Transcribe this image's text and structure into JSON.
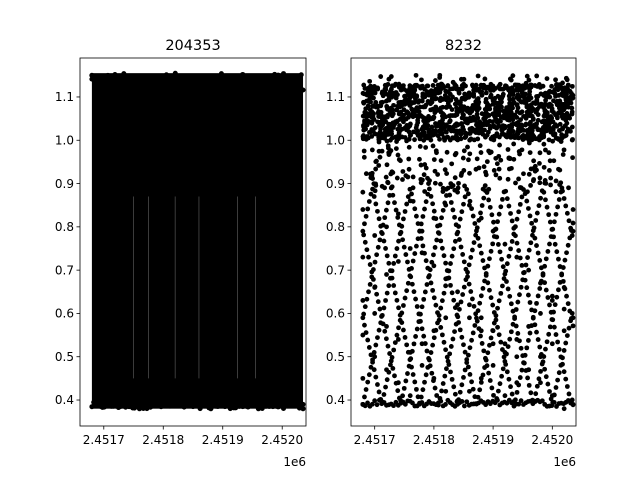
{
  "chart_data": [
    {
      "type": "scatter",
      "title": "204353",
      "xlabel": "",
      "ylabel": "",
      "x_offset_label": "1e6",
      "xlim": [
        2.45166,
        2.45204
      ],
      "ylim": [
        0.34,
        1.19
      ],
      "xticks": [
        2.4517,
        2.4518,
        2.4519,
        2.452
      ],
      "xtick_labels": [
        "2.4517",
        "2.4518",
        "2.4519",
        "2.4520"
      ],
      "yticks": [
        0.4,
        0.5,
        0.6,
        0.7,
        0.8,
        0.9,
        1.0,
        1.1
      ],
      "ytick_labels": [
        "0.4",
        "0.5",
        "0.6",
        "0.7",
        "0.8",
        "0.9",
        "1.0",
        "1.1"
      ],
      "grid": false,
      "marker_color": "#000000",
      "x_range": [
        2.45168,
        2.452035
      ],
      "y_range": [
        0.38,
        1.155
      ],
      "dense_band": [
        0.9,
        1.13
      ],
      "note_series": "Dense photometric cloud spanning nearly the full y-range across the whole x-range",
      "points": [
        [
          2.45168,
          1.15
        ],
        [
          2.45169,
          0.39
        ],
        [
          2.4517,
          1.12
        ],
        [
          2.45171,
          0.4
        ],
        [
          2.45172,
          1.1
        ],
        [
          2.45173,
          0.39
        ],
        [
          2.45175,
          1.11
        ],
        [
          2.45176,
          0.38
        ],
        [
          2.45178,
          1.13
        ],
        [
          2.4518,
          0.39
        ],
        [
          2.45182,
          1.12
        ],
        [
          2.45184,
          0.39
        ],
        [
          2.45186,
          1.13
        ],
        [
          2.45188,
          0.38
        ],
        [
          2.4519,
          1.12
        ],
        [
          2.45192,
          0.39
        ],
        [
          2.45194,
          1.13
        ],
        [
          2.45196,
          0.38
        ],
        [
          2.45198,
          1.12
        ],
        [
          2.452,
          0.39
        ],
        [
          2.45202,
          1.11
        ],
        [
          2.452035,
          0.38
        ]
      ]
    },
    {
      "type": "scatter",
      "title": "8232",
      "xlabel": "",
      "ylabel": "",
      "x_offset_label": "1e6",
      "xlim": [
        2.45166,
        2.45204
      ],
      "ylim": [
        0.34,
        1.19
      ],
      "xticks": [
        2.4517,
        2.4518,
        2.4519,
        2.452
      ],
      "xtick_labels": [
        "2.4517",
        "2.4518",
        "2.4519",
        "2.4520"
      ],
      "yticks": [
        0.4,
        0.5,
        0.6,
        0.7,
        0.8,
        0.9,
        1.0,
        1.1
      ],
      "ytick_labels": [
        "0.4",
        "0.5",
        "0.6",
        "0.7",
        "0.8",
        "0.9",
        "1.0",
        "1.1"
      ],
      "grid": false,
      "marker_color": "#000000",
      "x_range": [
        2.45168,
        2.452035
      ],
      "dense_band": [
        0.88,
        1.15
      ],
      "sparse_points_description": "Crossing diagonal tracks of points below the dense band, forming a lattice between 0.38 and 0.9",
      "points": [
        [
          2.45168,
          0.39
        ],
        [
          2.45168,
          0.45
        ],
        [
          2.45168,
          0.55
        ],
        [
          2.45168,
          0.63
        ],
        [
          2.45168,
          0.73
        ],
        [
          2.45168,
          0.84
        ],
        [
          2.45168,
          0.88
        ],
        [
          2.4517,
          0.6
        ],
        [
          2.4517,
          0.5
        ],
        [
          2.4517,
          0.78
        ],
        [
          2.4517,
          0.66
        ],
        [
          2.45172,
          0.57
        ],
        [
          2.45172,
          0.47
        ],
        [
          2.45172,
          0.8
        ],
        [
          2.45172,
          0.69
        ],
        [
          2.45174,
          0.54
        ],
        [
          2.45174,
          0.44
        ],
        [
          2.45174,
          0.83
        ],
        [
          2.45174,
          0.72
        ],
        [
          2.45176,
          0.51
        ],
        [
          2.45176,
          0.41
        ],
        [
          2.45176,
          0.86
        ],
        [
          2.45176,
          0.75
        ],
        [
          2.45178,
          0.48
        ],
        [
          2.45178,
          0.53
        ],
        [
          2.45178,
          0.79
        ],
        [
          2.45178,
          0.74
        ],
        [
          2.4518,
          0.45
        ],
        [
          2.4518,
          0.56
        ],
        [
          2.4518,
          0.82
        ],
        [
          2.4518,
          0.71
        ],
        [
          2.45182,
          0.42
        ],
        [
          2.45182,
          0.59
        ],
        [
          2.45182,
          0.85
        ],
        [
          2.45182,
          0.68
        ],
        [
          2.45184,
          0.39
        ],
        [
          2.45184,
          0.62
        ],
        [
          2.45184,
          0.88
        ],
        [
          2.45184,
          0.65
        ],
        [
          2.45186,
          0.42
        ],
        [
          2.45186,
          0.59
        ],
        [
          2.45186,
          0.85
        ],
        [
          2.45186,
          0.62
        ],
        [
          2.45188,
          0.45
        ],
        [
          2.45188,
          0.56
        ],
        [
          2.45188,
          0.82
        ],
        [
          2.45188,
          0.59
        ],
        [
          2.4519,
          0.48
        ],
        [
          2.4519,
          0.53
        ],
        [
          2.4519,
          0.79
        ],
        [
          2.4519,
          0.56
        ],
        [
          2.45192,
          0.51
        ],
        [
          2.45192,
          0.41
        ],
        [
          2.45192,
          0.76
        ],
        [
          2.45192,
          0.53
        ],
        [
          2.45194,
          0.54
        ],
        [
          2.45194,
          0.44
        ],
        [
          2.45194,
          0.73
        ],
        [
          2.45194,
          0.5
        ],
        [
          2.45196,
          0.57
        ],
        [
          2.45196,
          0.47
        ],
        [
          2.45196,
          0.7
        ],
        [
          2.45196,
          0.47
        ],
        [
          2.45198,
          0.6
        ],
        [
          2.45198,
          0.5
        ],
        [
          2.45198,
          0.67
        ],
        [
          2.45198,
          0.44
        ],
        [
          2.452,
          0.63
        ],
        [
          2.452,
          0.53
        ],
        [
          2.452,
          0.64
        ],
        [
          2.452,
          0.41
        ],
        [
          2.45202,
          0.66
        ],
        [
          2.45202,
          0.56
        ],
        [
          2.45202,
          0.61
        ],
        [
          2.45202,
          0.38
        ],
        [
          2.452035,
          0.79
        ],
        [
          2.452035,
          0.59
        ],
        [
          2.452035,
          0.84
        ],
        [
          2.452035,
          0.39
        ]
      ]
    }
  ]
}
